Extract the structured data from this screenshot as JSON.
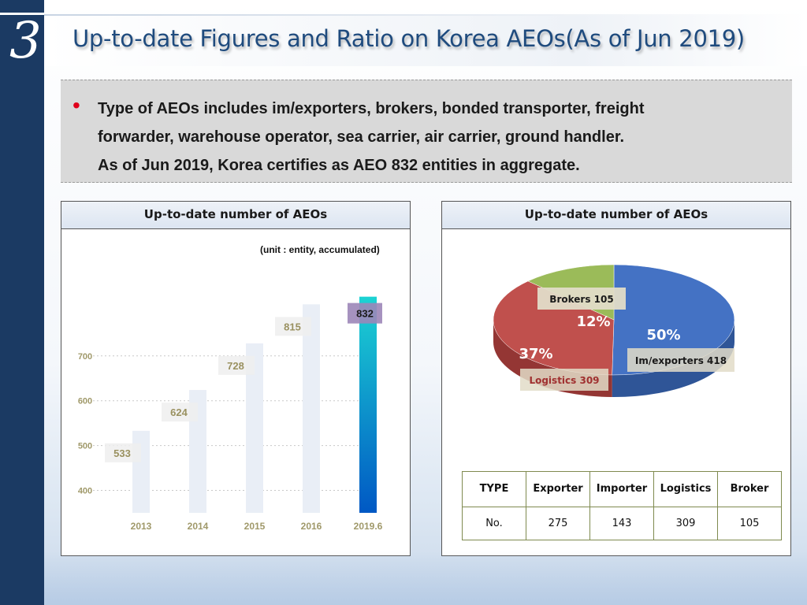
{
  "slide": {
    "section_number": "3",
    "title": "Up-to-date Figures and Ratio on Korea AEOs(As of Jun 2019)",
    "info_lines": [
      "Type of AEOs includes im/exporters, brokers, bonded transporter, freight",
      "forwarder, warehouse operator, sea carrier, air carrier, ground handler.",
      "As of Jun 2019, Korea certifies as AEO 832 entities in aggregate."
    ],
    "bullet": "•"
  },
  "left_panel": {
    "header": "Up-to-date number of AEOs",
    "unit_note": "(unit : entity, accumulated)"
  },
  "right_panel": {
    "header": "Up-to-date number of AEOs",
    "table": {
      "header": [
        "TYPE",
        "Exporter",
        "Importer",
        "Logistics",
        "Broker"
      ],
      "row": [
        "No.",
        "275",
        "143",
        "309",
        "105"
      ]
    }
  },
  "chart_data": [
    {
      "type": "bar",
      "categories": [
        "2013",
        "2014",
        "2015",
        "2016",
        "2019.6"
      ],
      "values": [
        533,
        624,
        728,
        815,
        832
      ],
      "data_labels": [
        "533",
        "624",
        "728",
        "815",
        "832"
      ],
      "title": "",
      "xlabel": "",
      "ylabel": "",
      "yticks": [
        400,
        500,
        600,
        700
      ],
      "ylim": [
        350,
        935
      ],
      "grid": true,
      "colors": {
        "bars": "#e9eef6",
        "highlight_top": "#1cd3d3",
        "highlight_bottom": "#0058c4",
        "tick_label": "#a0996a",
        "value_label": "#9a9160",
        "highlight_label_bg": "#9c86b8"
      }
    },
    {
      "type": "pie",
      "labels": [
        "Im/exporters",
        "Logistics",
        "Brokers"
      ],
      "values": [
        418,
        309,
        105
      ],
      "percent_labels": [
        "50%",
        "37%",
        "12%"
      ],
      "slice_labels": [
        "Im/exporters 418",
        "Logistics 309",
        "Brokers 105"
      ],
      "colors": [
        "#4472c4",
        "#c0504d",
        "#9bbb59"
      ],
      "depth_colors": [
        "#2f5597",
        "#943634",
        "#76923c"
      ]
    }
  ]
}
